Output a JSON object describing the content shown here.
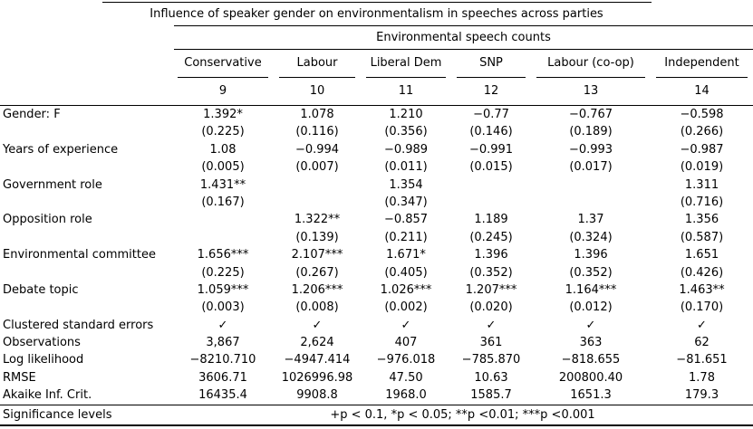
{
  "title": "Influence of speaker gender on environmentalism in speeches across parties",
  "columns_group": "Environmental speech counts",
  "columns": [
    "Conservative",
    "Labour",
    "Liberal Dem",
    "SNP",
    "Labour (co-op)",
    "Independent"
  ],
  "model_numbers": [
    "9",
    "10",
    "11",
    "12",
    "13",
    "14"
  ],
  "coefficients": [
    {
      "label": "Gender: F",
      "est": [
        "1.392*",
        "1.078",
        "1.210",
        "−0.77",
        "−0.767",
        "−0.598"
      ],
      "se": [
        "(0.225)",
        "(0.116)",
        "(0.356)",
        "(0.146)",
        "(0.189)",
        "(0.266)"
      ]
    },
    {
      "label": "Years of experience",
      "est": [
        "1.08",
        "−0.994",
        "−0.989",
        "−0.991",
        "−0.993",
        "−0.987"
      ],
      "se": [
        "(0.005)",
        "(0.007)",
        "(0.011)",
        "(0.015)",
        "(0.017)",
        "(0.019)"
      ]
    },
    {
      "label": "Government role",
      "est": [
        "1.431**",
        "",
        "1.354",
        "",
        "",
        "1.311"
      ],
      "se": [
        "(0.167)",
        "",
        "(0.347)",
        "",
        "",
        "(0.716)"
      ]
    },
    {
      "label": "Opposition role",
      "est": [
        "",
        "1.322**",
        "−0.857",
        "1.189",
        "1.37",
        "1.356"
      ],
      "se": [
        "",
        "(0.139)",
        "(0.211)",
        "(0.245)",
        "(0.324)",
        "(0.587)"
      ]
    },
    {
      "label": "Environmental committee",
      "est": [
        "1.656***",
        "2.107***",
        "1.671*",
        "1.396",
        "1.396",
        "1.651"
      ],
      "se": [
        "(0.225)",
        "(0.267)",
        "(0.405)",
        "(0.352)",
        "(0.352)",
        "(0.426)"
      ]
    },
    {
      "label": "Debate topic",
      "est": [
        "1.059***",
        "1.206***",
        "1.026***",
        "1.207***",
        "1.164***",
        "1.463**"
      ],
      "se": [
        "(0.003)",
        "(0.008)",
        "(0.002)",
        "(0.020)",
        "(0.012)",
        "(0.170)"
      ]
    }
  ],
  "stats": [
    {
      "label": "Clustered standard errors",
      "values": [
        "✓",
        "✓",
        "✓",
        "✓",
        "✓",
        "✓"
      ]
    },
    {
      "label": "Observations",
      "values": [
        "3,867",
        "2,624",
        "407",
        "361",
        "363",
        "62"
      ]
    },
    {
      "label": "Log likelihood",
      "values": [
        "−8210.710",
        "−4947.414",
        "−976.018",
        "−785.870",
        "−818.655",
        "−81.651"
      ]
    },
    {
      "label": "RMSE",
      "values": [
        "3606.71",
        "1026996.98",
        "47.50",
        "10.63",
        "200800.40",
        "1.78"
      ]
    },
    {
      "label": "Akaike Inf. Crit.",
      "values": [
        "16435.4",
        "9908.8",
        "1968.0",
        "1585.7",
        "1651.3",
        "179.3"
      ]
    }
  ],
  "notes": {
    "label": "Significance levels",
    "text": "+p < 0.1, *p < 0.05; **p <0.01; ***p <0.001"
  }
}
